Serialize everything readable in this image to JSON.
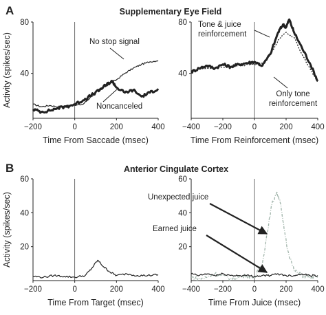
{
  "figure": {
    "panel_a": {
      "letter": "A",
      "title": "Supplementary Eye Field"
    },
    "panel_b": {
      "letter": "B",
      "title": "Anterior Cingulate Cortex"
    }
  },
  "chart_data": [
    {
      "id": "a-left",
      "type": "line",
      "title": "Supplementary Eye Field",
      "xlabel": "Time From Saccade (msec)",
      "ylabel": "Activity (spikes/sec)",
      "xlim": [
        -200,
        400
      ],
      "ylim": [
        5,
        80
      ],
      "xticks": [
        -200,
        0,
        200,
        400
      ],
      "yticks": [
        40,
        80
      ],
      "zero_line_x": 0,
      "series": [
        {
          "name": "No stop signal",
          "color": "#222222",
          "style": "solid-thin",
          "x": [
            -200,
            -160,
            -120,
            -80,
            -40,
            0,
            40,
            80,
            120,
            160,
            200,
            240,
            280,
            320,
            360,
            400
          ],
          "y": [
            16,
            14,
            15,
            14,
            15,
            15,
            16,
            22,
            28,
            31,
            35,
            40,
            44,
            47,
            49,
            50
          ]
        },
        {
          "name": "Noncanceled",
          "color": "#222222",
          "style": "solid-thick",
          "x": [
            -200,
            -160,
            -120,
            -80,
            -40,
            0,
            40,
            80,
            120,
            150,
            180,
            200,
            240,
            280,
            320,
            360,
            400
          ],
          "y": [
            12,
            10,
            11,
            13,
            14,
            16,
            19,
            23,
            27,
            31,
            34,
            29,
            25,
            27,
            22,
            25,
            28
          ]
        }
      ],
      "annotations": [
        "No stop signal",
        "Noncanceled"
      ]
    },
    {
      "id": "a-right",
      "type": "line",
      "title": "",
      "xlabel": "Time From Reinforcement (msec)",
      "ylabel": "",
      "xlim": [
        -400,
        400
      ],
      "ylim": [
        5,
        80
      ],
      "xticks": [
        -400,
        -200,
        0,
        200,
        400
      ],
      "yticks": [
        40,
        80
      ],
      "zero_line_x": 0,
      "series": [
        {
          "name": "Tone & juice reinforcement",
          "color": "#222222",
          "style": "solid-thick",
          "x": [
            -400,
            -350,
            -300,
            -250,
            -200,
            -150,
            -100,
            -50,
            0,
            50,
            100,
            150,
            180,
            200,
            220,
            250,
            300,
            350,
            400
          ],
          "y": [
            41,
            44,
            46,
            44,
            47,
            45,
            47,
            48,
            49,
            46,
            55,
            72,
            78,
            76,
            82,
            72,
            60,
            48,
            34
          ]
        },
        {
          "name": "Only tone reinforcement",
          "color": "#222222",
          "style": "dotted",
          "x": [
            -400,
            -300,
            -200,
            -100,
            0,
            50,
            100,
            150,
            200,
            250,
            300,
            350,
            400
          ],
          "y": [
            42,
            44,
            45,
            46,
            47,
            48,
            54,
            66,
            72,
            68,
            55,
            44,
            33
          ]
        }
      ],
      "annotations": [
        "Tone & juice reinforcement",
        "Only tone reinforcement"
      ]
    },
    {
      "id": "b-left",
      "type": "line",
      "title": "Anterior Cingulate Cortex",
      "xlabel": "Time From Target (msec)",
      "ylabel": "Activity (spikes/sec)",
      "xlim": [
        -200,
        400
      ],
      "ylim": [
        0,
        60
      ],
      "xticks": [
        -200,
        0,
        200,
        400
      ],
      "yticks": [
        20,
        40,
        60
      ],
      "zero_line_x": 0,
      "series": [
        {
          "name": "",
          "color": "#222222",
          "style": "solid-thin",
          "x": [
            -200,
            -150,
            -100,
            -50,
            0,
            50,
            80,
            110,
            140,
            170,
            200,
            250,
            300,
            350,
            400
          ],
          "y": [
            2.5,
            2,
            3,
            2.5,
            2,
            3,
            7,
            12,
            8,
            5,
            3,
            4,
            3,
            3,
            3.5
          ]
        }
      ],
      "annotations": []
    },
    {
      "id": "b-right",
      "type": "line",
      "title": "",
      "xlabel": "Time From Juice (msec)",
      "ylabel": "",
      "xlim": [
        -400,
        400
      ],
      "ylim": [
        0,
        60
      ],
      "xticks": [
        -400,
        -200,
        0,
        200,
        400
      ],
      "yticks": [
        20,
        40,
        60
      ],
      "zero_line_x": 0,
      "series": [
        {
          "name": "Unexpected juice",
          "color": "#9fb3a9",
          "style": "dashdot",
          "x": [
            -400,
            -350,
            -300,
            -250,
            -200,
            -150,
            -100,
            -50,
            0,
            50,
            80,
            110,
            140,
            160,
            180,
            210,
            250,
            300,
            350,
            400
          ],
          "y": [
            2,
            1,
            2,
            4,
            3,
            1,
            2,
            3,
            2,
            10,
            28,
            45,
            52,
            48,
            35,
            18,
            6,
            3,
            2,
            2
          ]
        },
        {
          "name": "Earned juice",
          "color": "#222222",
          "style": "solid-thin",
          "x": [
            -400,
            -350,
            -300,
            -250,
            -200,
            -150,
            -100,
            -50,
            0,
            50,
            100,
            150,
            200,
            250,
            300,
            350,
            400
          ],
          "y": [
            4,
            3,
            4,
            3,
            4,
            3,
            3,
            3,
            2.5,
            3,
            3,
            4,
            3,
            3,
            4,
            3,
            3
          ]
        }
      ],
      "annotations": [
        "Unexpected juice",
        "Earned juice"
      ]
    }
  ]
}
